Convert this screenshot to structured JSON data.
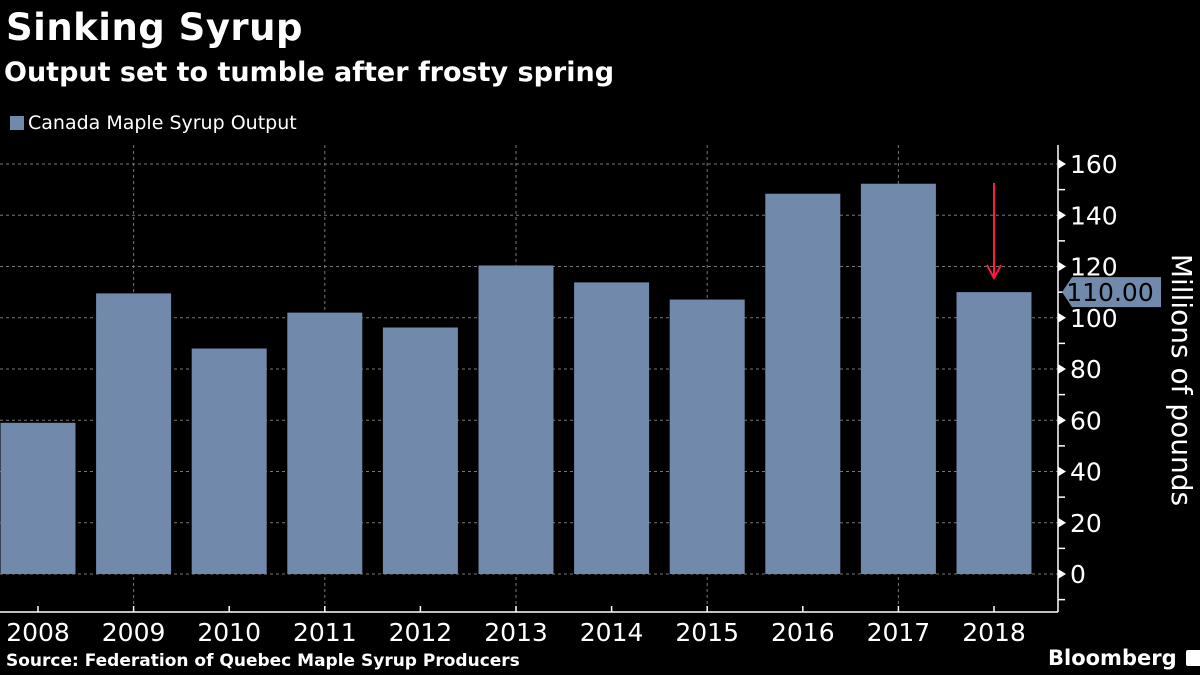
{
  "chart_data": {
    "type": "bar",
    "title": "Sinking Syrup",
    "subtitle": "Output set to tumble after frosty spring",
    "categories": [
      "2008",
      "2009",
      "2010",
      "2011",
      "2012",
      "2013",
      "2014",
      "2015",
      "2016",
      "2017",
      "2018"
    ],
    "series": [
      {
        "name": "Canada Maple Syrup Output",
        "values": [
          59,
          109.5,
          88,
          102,
          96.2,
          120.4,
          113.8,
          107.1,
          148.4,
          152.3,
          110
        ],
        "color": "#7189aa"
      }
    ],
    "xlabel": "",
    "ylabel": "Millions of pounds",
    "ylim": [
      -15,
      167
    ],
    "yticks": [
      0,
      20,
      40,
      60,
      80,
      100,
      120,
      140,
      160
    ],
    "y_axis_side": "right",
    "grid": true,
    "legend_position": "top-left",
    "annotations": [
      {
        "type": "value-label",
        "category": "2018",
        "text": "110.00"
      },
      {
        "type": "down-arrow",
        "category": "2018",
        "color": "#ff1a40"
      }
    ],
    "source": "Source: Federation of Quebec Maple Syrup Producers",
    "branding": "Bloomberg"
  }
}
